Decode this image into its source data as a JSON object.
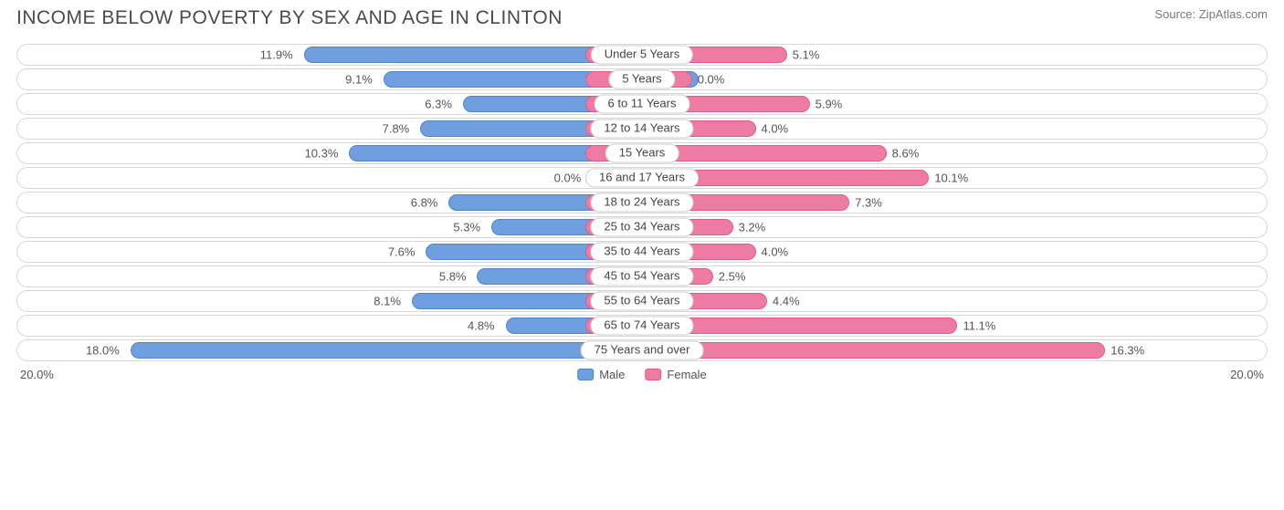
{
  "title": "INCOME BELOW POVERTY BY SEX AND AGE IN CLINTON",
  "source": "Source: ZipAtlas.com",
  "chart": {
    "type": "diverging-bar",
    "axis_max": 20.0,
    "axis_label_left": "20.0%",
    "axis_label_right": "20.0%",
    "center_badge_width_pct": 9.0,
    "male": {
      "label": "Male",
      "fill": "#6f9fde",
      "border": "#4f85c9"
    },
    "female": {
      "label": "Female",
      "fill": "#ee7ba3",
      "border": "#e25a8b"
    },
    "track_border": "#d8d8d8",
    "background": "#ffffff",
    "label_color": "#555555",
    "label_fontsize": 13,
    "rows": [
      {
        "category": "Under 5 Years",
        "male": 11.9,
        "female": 5.1,
        "male_label": "11.9%",
        "female_label": "5.1%"
      },
      {
        "category": "5 Years",
        "male": 9.1,
        "female": 0.0,
        "male_label": "9.1%",
        "female_label": "0.0%"
      },
      {
        "category": "6 to 11 Years",
        "male": 6.3,
        "female": 5.9,
        "male_label": "6.3%",
        "female_label": "5.9%"
      },
      {
        "category": "12 to 14 Years",
        "male": 7.8,
        "female": 4.0,
        "male_label": "7.8%",
        "female_label": "4.0%"
      },
      {
        "category": "15 Years",
        "male": 10.3,
        "female": 8.6,
        "male_label": "10.3%",
        "female_label": "8.6%"
      },
      {
        "category": "16 and 17 Years",
        "male": 0.0,
        "female": 10.1,
        "male_label": "0.0%",
        "female_label": "10.1%"
      },
      {
        "category": "18 to 24 Years",
        "male": 6.8,
        "female": 7.3,
        "male_label": "6.8%",
        "female_label": "7.3%"
      },
      {
        "category": "25 to 34 Years",
        "male": 5.3,
        "female": 3.2,
        "male_label": "5.3%",
        "female_label": "3.2%"
      },
      {
        "category": "35 to 44 Years",
        "male": 7.6,
        "female": 4.0,
        "male_label": "7.6%",
        "female_label": "4.0%"
      },
      {
        "category": "45 to 54 Years",
        "male": 5.8,
        "female": 2.5,
        "male_label": "5.8%",
        "female_label": "2.5%"
      },
      {
        "category": "55 to 64 Years",
        "male": 8.1,
        "female": 4.4,
        "male_label": "8.1%",
        "female_label": "4.4%"
      },
      {
        "category": "65 to 74 Years",
        "male": 4.8,
        "female": 11.1,
        "male_label": "4.8%",
        "female_label": "11.1%"
      },
      {
        "category": "75 Years and over",
        "male": 18.0,
        "female": 16.3,
        "male_label": "18.0%",
        "female_label": "16.3%"
      }
    ],
    "min_stub_pct": 2.0,
    "zero_stub_pct": 4.0
  }
}
